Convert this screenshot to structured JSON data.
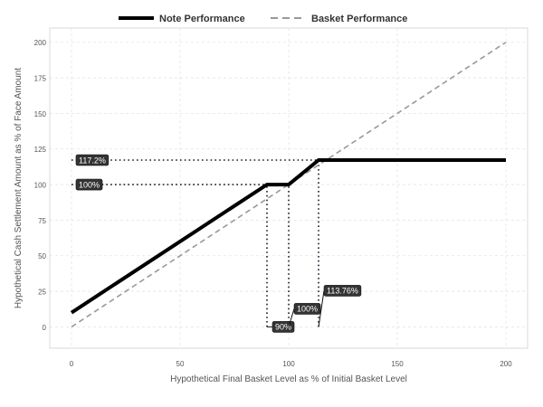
{
  "chart_data": {
    "type": "line",
    "title": "",
    "xlabel": "Hypothetical Final Basket Level as % of Initial Basket Level",
    "ylabel": "Hypothetical Cash Settlement Amount as % of Face Amount",
    "xlim": [
      -10,
      210
    ],
    "ylim": [
      -15,
      210
    ],
    "xticks": [
      0,
      50,
      100,
      150,
      200
    ],
    "yticks": [
      0,
      25,
      50,
      75,
      100,
      125,
      150,
      175,
      200
    ],
    "grid": true,
    "legend_position": "top",
    "series": [
      {
        "name": "Note Performance",
        "style": "solid",
        "color": "#000000",
        "x": [
          0,
          90,
          100,
          113.76,
          200
        ],
        "y": [
          10,
          100,
          100,
          117.2,
          117.2
        ]
      },
      {
        "name": "Basket Performance",
        "style": "dashed",
        "color": "#999999",
        "x": [
          0,
          200
        ],
        "y": [
          0,
          200
        ]
      }
    ],
    "reference_lines": [
      {
        "from": [
          0,
          117.2
        ],
        "to": [
          113.76,
          117.2
        ]
      },
      {
        "from": [
          0,
          100
        ],
        "to": [
          100,
          100
        ]
      },
      {
        "from": [
          90,
          0
        ],
        "to": [
          90,
          100
        ]
      },
      {
        "from": [
          100,
          0
        ],
        "to": [
          100,
          100
        ]
      },
      {
        "from": [
          113.76,
          0
        ],
        "to": [
          113.76,
          117.2
        ]
      }
    ],
    "annotations": [
      {
        "text": "117.2%",
        "x": 0,
        "y": 117.2,
        "leader": false
      },
      {
        "text": "100%",
        "x": 0,
        "y": 100,
        "leader": false
      },
      {
        "text": "90%",
        "x": 90,
        "y": 0,
        "leader": true
      },
      {
        "text": "100%",
        "x": 100,
        "y": 0,
        "leader": true
      },
      {
        "text": "113.76%",
        "x": 113.76,
        "y": 0,
        "leader": true
      }
    ]
  }
}
